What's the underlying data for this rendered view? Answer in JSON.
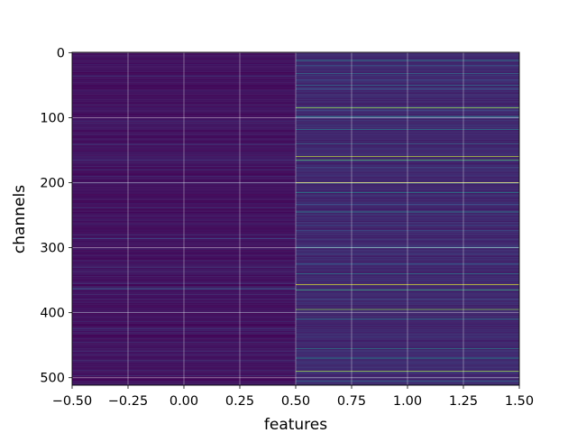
{
  "chart_data": {
    "type": "heatmap",
    "xlabel": "features",
    "ylabel": "channels",
    "colormap": "viridis",
    "grid": true,
    "x_extent": [
      -0.5,
      1.5
    ],
    "y_extent": [
      511.5,
      -0.5
    ],
    "xlim": [
      -0.5,
      1.5
    ],
    "ylim": [
      511.5,
      -0.5
    ],
    "x_ticks": [
      -0.5,
      -0.25,
      0.0,
      0.25,
      0.5,
      0.75,
      1.0,
      1.25,
      1.5
    ],
    "x_tick_labels": [
      "−0.50",
      "−0.25",
      "0.00",
      "0.25",
      "0.50",
      "0.75",
      "1.00",
      "1.25",
      "1.50"
    ],
    "y_ticks": [
      0,
      100,
      200,
      300,
      400,
      500
    ],
    "y_tick_labels": [
      "0",
      "100",
      "200",
      "300",
      "400",
      "500"
    ],
    "columns": [
      0,
      1
    ],
    "rows": 512,
    "column_baseline": [
      0.05,
      0.12
    ],
    "highlighted_cells": [
      {
        "column": 0,
        "channel": 80,
        "value": 0.12
      },
      {
        "column": 0,
        "channel": 160,
        "value": 0.12
      },
      {
        "column": 0,
        "channel": 355,
        "value": 0.2
      },
      {
        "column": 0,
        "channel": 363,
        "value": 0.3
      },
      {
        "column": 0,
        "channel": 400,
        "value": 0.15
      },
      {
        "column": 0,
        "channel": 497,
        "value": 0.15
      },
      {
        "column": 1,
        "channel": 12,
        "value": 0.45
      },
      {
        "column": 1,
        "channel": 20,
        "value": 0.3
      },
      {
        "column": 1,
        "channel": 32,
        "value": 0.35
      },
      {
        "column": 1,
        "channel": 50,
        "value": 0.35
      },
      {
        "column": 1,
        "channel": 85,
        "value": 0.85
      },
      {
        "column": 1,
        "channel": 98,
        "value": 0.4
      },
      {
        "column": 1,
        "channel": 118,
        "value": 0.4
      },
      {
        "column": 1,
        "channel": 140,
        "value": 0.35
      },
      {
        "column": 1,
        "channel": 160,
        "value": 0.9
      },
      {
        "column": 1,
        "channel": 165,
        "value": 0.7
      },
      {
        "column": 1,
        "channel": 200,
        "value": 0.95
      },
      {
        "column": 1,
        "channel": 215,
        "value": 0.45
      },
      {
        "column": 1,
        "channel": 245,
        "value": 0.45
      },
      {
        "column": 1,
        "channel": 300,
        "value": 0.45
      },
      {
        "column": 1,
        "channel": 340,
        "value": 0.4
      },
      {
        "column": 1,
        "channel": 357,
        "value": 0.95
      },
      {
        "column": 1,
        "channel": 365,
        "value": 0.6
      },
      {
        "column": 1,
        "channel": 395,
        "value": 0.8
      },
      {
        "column": 1,
        "channel": 410,
        "value": 0.4
      },
      {
        "column": 1,
        "channel": 455,
        "value": 0.45
      },
      {
        "column": 1,
        "channel": 470,
        "value": 0.5
      },
      {
        "column": 1,
        "channel": 490,
        "value": 0.85
      },
      {
        "column": 1,
        "channel": 505,
        "value": 0.35
      }
    ]
  }
}
